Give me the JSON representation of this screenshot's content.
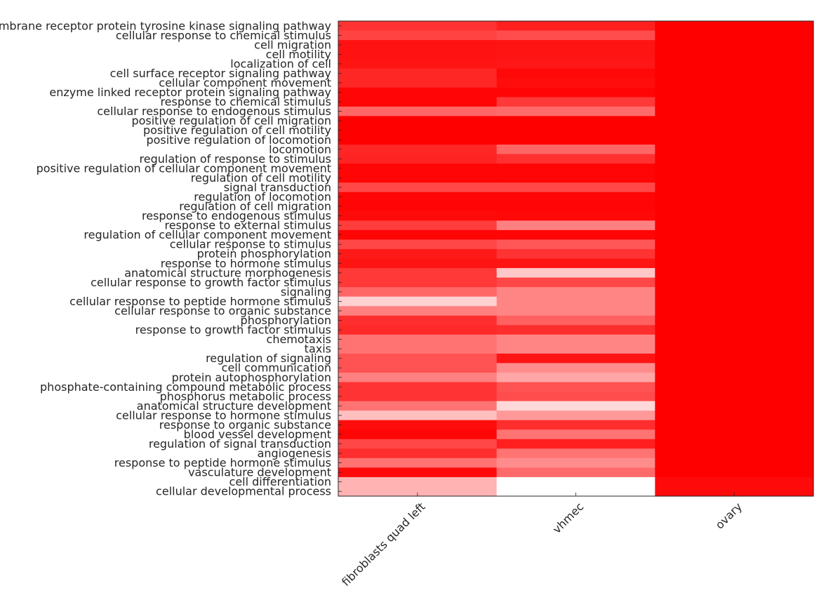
{
  "chart_data": {
    "type": "heatmap",
    "x_categories": [
      "fibroblasts quad left",
      "vhmec",
      "ovary"
    ],
    "y_categories": [
      "transmembrane receptor protein tyrosine kinase signaling pathway",
      "cellular response to chemical stimulus",
      "cell migration",
      "cell motility",
      "localization of cell",
      "cell surface receptor signaling pathway",
      "cellular component movement",
      "enzyme linked receptor protein signaling pathway",
      "response to chemical stimulus",
      "cellular response to endogenous stimulus",
      "positive regulation of cell migration",
      "positive regulation of cell motility",
      "positive regulation of locomotion",
      "locomotion",
      "regulation of response to stimulus",
      "positive regulation of cellular component movement",
      "regulation of cell motility",
      "signal transduction",
      "regulation of locomotion",
      "regulation of cell migration",
      "response to endogenous stimulus",
      "response to external stimulus",
      "regulation of cellular component movement",
      "cellular response to stimulus",
      "protein phosphorylation",
      "response to hormone stimulus",
      "anatomical structure morphogenesis",
      "cellular response to growth factor stimulus",
      "signaling",
      "cellular response to peptide hormone stimulus",
      "cellular response to organic substance",
      "phosphorylation",
      "response to growth factor stimulus",
      "chemotaxis",
      "taxis",
      "regulation of signaling",
      "cell communication",
      "protein autophosphorylation",
      "phosphate-containing compound metabolic process",
      "phosphorus metabolic process",
      "anatomical structure development",
      "cellular response to hormone stimulus",
      "response to organic substance",
      "blood vessel development",
      "regulation of signal transduction",
      "angiogenesis",
      "response to peptide hormone stimulus",
      "vasculature development",
      "cell differentiation",
      "cellular developmental process"
    ],
    "values": [
      [
        0.8,
        0.88,
        1.0
      ],
      [
        0.74,
        0.7,
        1.0
      ],
      [
        0.93,
        0.92,
        1.0
      ],
      [
        0.93,
        0.92,
        1.0
      ],
      [
        0.92,
        0.91,
        1.0
      ],
      [
        0.85,
        0.97,
        1.0
      ],
      [
        0.85,
        0.95,
        1.0
      ],
      [
        0.98,
        0.98,
        1.0
      ],
      [
        0.98,
        0.78,
        1.0
      ],
      [
        0.6,
        0.58,
        1.0
      ],
      [
        1.0,
        1.0,
        1.0
      ],
      [
        1.0,
        1.0,
        1.0
      ],
      [
        1.0,
        1.0,
        1.0
      ],
      [
        0.85,
        0.6,
        1.0
      ],
      [
        0.86,
        0.81,
        1.0
      ],
      [
        0.98,
        0.98,
        1.0
      ],
      [
        0.98,
        0.98,
        1.0
      ],
      [
        0.72,
        0.72,
        1.0
      ],
      [
        0.98,
        0.98,
        1.0
      ],
      [
        0.98,
        0.98,
        1.0
      ],
      [
        0.96,
        0.97,
        1.0
      ],
      [
        0.76,
        0.5,
        1.0
      ],
      [
        0.98,
        0.98,
        1.0
      ],
      [
        0.72,
        0.66,
        1.0
      ],
      [
        0.9,
        0.8,
        1.0
      ],
      [
        0.92,
        0.92,
        1.0
      ],
      [
        0.78,
        0.22,
        1.0
      ],
      [
        0.78,
        0.72,
        1.0
      ],
      [
        0.6,
        0.48,
        1.0
      ],
      [
        0.18,
        0.48,
        1.0
      ],
      [
        0.5,
        0.48,
        1.0
      ],
      [
        0.82,
        0.62,
        1.0
      ],
      [
        0.84,
        0.82,
        1.0
      ],
      [
        0.55,
        0.48,
        1.0
      ],
      [
        0.55,
        0.48,
        1.0
      ],
      [
        0.68,
        0.92,
        1.0
      ],
      [
        0.68,
        0.45,
        1.0
      ],
      [
        0.5,
        0.35,
        1.0
      ],
      [
        0.8,
        0.68,
        1.0
      ],
      [
        0.8,
        0.7,
        1.0
      ],
      [
        0.55,
        0.15,
        1.0
      ],
      [
        0.25,
        0.4,
        1.0
      ],
      [
        0.95,
        0.82,
        1.0
      ],
      [
        0.98,
        0.55,
        1.0
      ],
      [
        0.72,
        0.88,
        1.0
      ],
      [
        0.82,
        0.55,
        1.0
      ],
      [
        0.55,
        0.45,
        1.0
      ],
      [
        0.96,
        0.58,
        1.0
      ],
      [
        0.3,
        0.0,
        0.96
      ],
      [
        0.3,
        0.0,
        0.96
      ]
    ],
    "colormap": [
      "#ffffff",
      "#ff0000"
    ],
    "grid": false,
    "title": "",
    "xlabel": "",
    "ylabel": ""
  }
}
